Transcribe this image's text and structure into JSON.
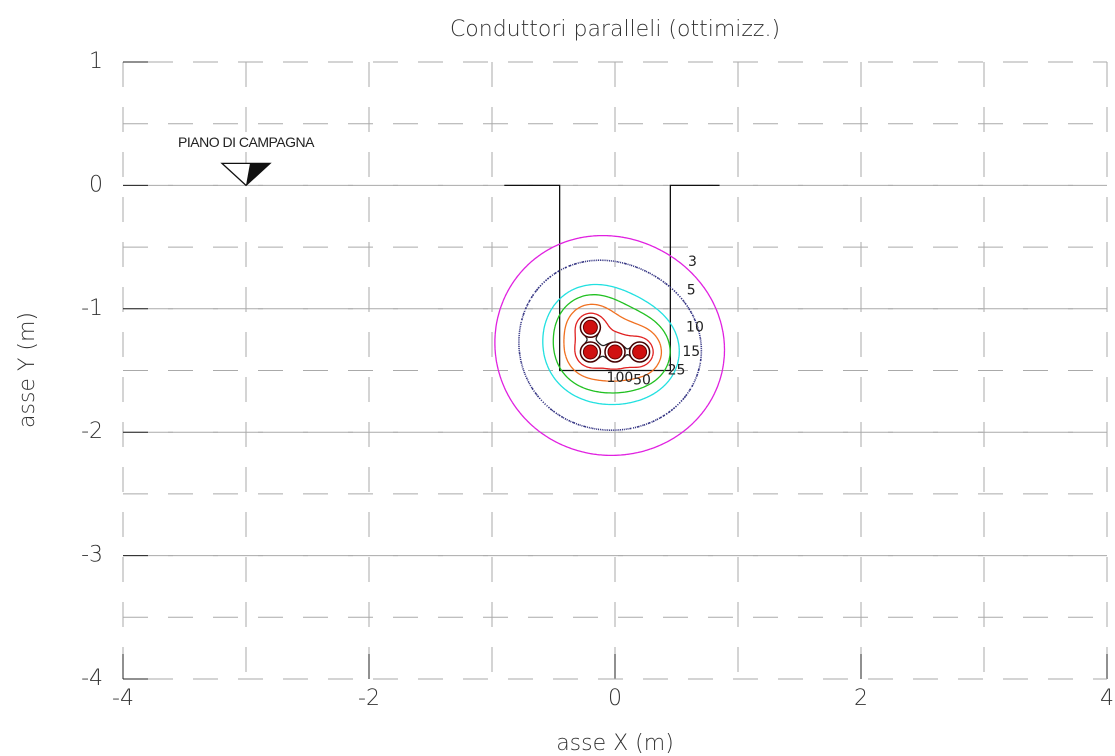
{
  "chart_data": {
    "type": "contour",
    "title": "Conduttori paralleli (ottimizz.)",
    "xlabel": "asse X (m)",
    "ylabel": "asse Y (m)",
    "xlim": [
      -4,
      4
    ],
    "ylim": [
      -4,
      1
    ],
    "xticks": [
      -4,
      -2,
      0,
      2,
      4
    ],
    "yticks": [
      1,
      0,
      -1,
      -2,
      -3,
      -4
    ],
    "xgrid": [
      -3,
      -2,
      -1,
      0,
      1,
      2,
      3
    ],
    "ygrid": [
      0.5,
      0,
      -0.5,
      -1,
      -1.5,
      -2,
      -2.5,
      -3,
      -3.5
    ],
    "grid": true,
    "levels": [
      3,
      5,
      10,
      15,
      25,
      50,
      100
    ],
    "colors": [
      "#e020e0",
      "#303080",
      "#20e0e0",
      "#20c020",
      "#f07020",
      "#e02020",
      "#202020"
    ],
    "linestyles": [
      "solid",
      "dotted",
      "solid",
      "solid",
      "solid",
      "solid",
      "solid"
    ],
    "annotation": "PIANO DI CAMPAGNA"
  }
}
